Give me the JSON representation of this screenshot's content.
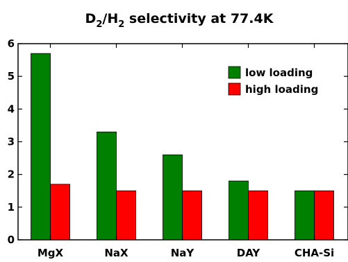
{
  "chart_data": {
    "type": "bar",
    "title": {
      "prefix": "D",
      "sub1": "2",
      "middle": "/H",
      "sub2": "2",
      "suffix": " selectivity at 77.4K"
    },
    "categories": [
      "MgX",
      "NaX",
      "NaY",
      "DAY",
      "CHA-Si"
    ],
    "series": [
      {
        "name": "low loading",
        "values": [
          5.7,
          3.3,
          2.6,
          1.8,
          1.5
        ],
        "color": "#008000"
      },
      {
        "name": "high loading",
        "values": [
          1.7,
          1.5,
          1.5,
          1.5,
          1.5
        ],
        "color": "#ff0000"
      }
    ],
    "ylim": [
      0,
      6
    ],
    "yticks": [
      0,
      1,
      2,
      3,
      4,
      5,
      6
    ],
    "xlabel": "",
    "ylabel": "",
    "grid": false,
    "legend_position": "top-right"
  }
}
